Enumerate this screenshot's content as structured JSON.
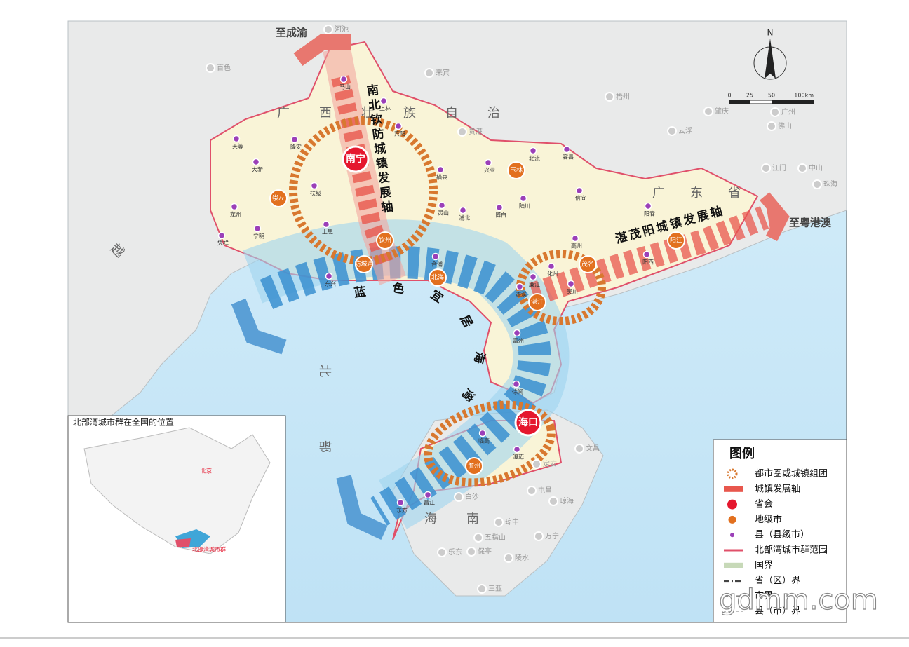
{
  "map": {
    "directions": [
      "至成渝",
      "至粤港澳"
    ],
    "axes": [
      "南北钦防城镇发展轴",
      "湛茂阳城镇发展轴",
      "蓝色宜居海湾"
    ],
    "regions": [
      "广西壮族自治区",
      "广东省",
      "海南省",
      "越南",
      "北部湾"
    ],
    "capitals": [
      "南宁",
      "海口"
    ],
    "prefecture_cities": [
      "崇左",
      "防城港",
      "钦州",
      "北海",
      "玉林",
      "茂名",
      "湛江",
      "阳江",
      "儋州"
    ],
    "counties": [
      "马山",
      "上林",
      "宾阳",
      "天等",
      "隆安",
      "大新",
      "扶绥",
      "龙州",
      "宁明",
      "上思",
      "凭祥",
      "东兴",
      "合浦",
      "灵山",
      "浦北",
      "横县",
      "兴业",
      "北流",
      "容县",
      "陆川",
      "博白",
      "信宜",
      "高州",
      "化州",
      "廉江",
      "吴川",
      "遂溪",
      "雷州",
      "徐闻",
      "阳西",
      "阳春",
      "临高",
      "澄迈",
      "昌江",
      "东方"
    ],
    "other_places": [
      "河池",
      "百色",
      "来宾",
      "梧州",
      "贵港",
      "云浮",
      "肇庆",
      "广州",
      "佛山",
      "江门",
      "中山",
      "珠海",
      "文昌",
      "定安",
      "屯昌",
      "琼海",
      "白沙",
      "琼中",
      "万宁",
      "五指山",
      "陵水",
      "保亭",
      "乐东",
      "三亚"
    ]
  },
  "compass": "N",
  "scale": [
    "0",
    "25",
    "50",
    "100km"
  ],
  "legend": {
    "title": "图例",
    "items": [
      "都市圈或城镇组团",
      "城镇发展轴",
      "省会",
      "地级市",
      "县（县级市）",
      "北部湾城市群范围",
      "国界",
      "省（区）界",
      "市界",
      "县（市）界"
    ]
  },
  "inset": {
    "title": "北部湾城市群在全国的位置",
    "labels": [
      "北京",
      "北部湾城市群"
    ]
  },
  "watermark": "gdmm.com"
}
